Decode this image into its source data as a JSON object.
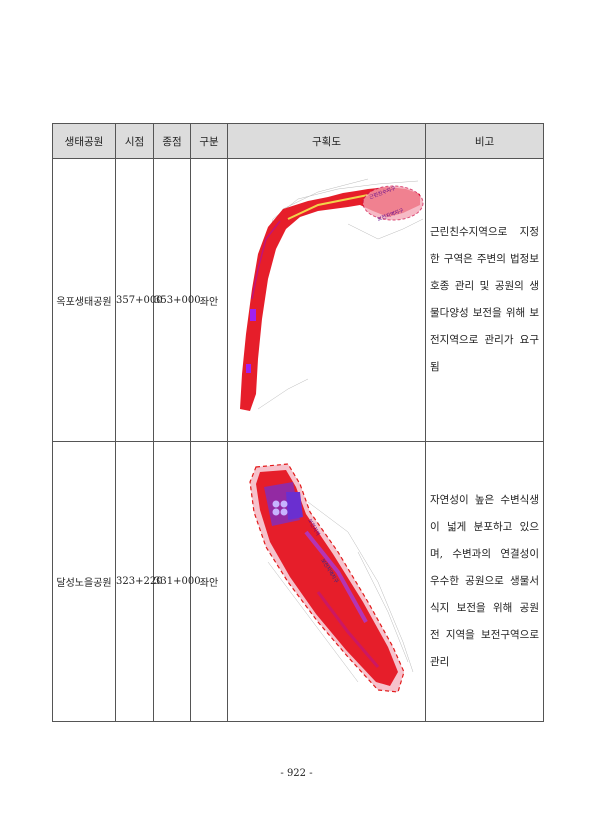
{
  "table": {
    "headers": {
      "park": "생태공원",
      "start": "시점",
      "end": "종점",
      "division": "구분",
      "plan": "구획도",
      "note": "비고"
    },
    "rows": [
      {
        "park": "옥포생태공원",
        "start": "357+000",
        "end": "353+000",
        "division": "좌안",
        "map_labels": [
          "근린친수지구",
          "보전지역지구"
        ],
        "note": "근린친수지역으로 지정한 구역은 주변의 법정보호종 관리 및 공원의 생물다양성 보전을 위해 보전지역으로 관리가 요구됨"
      },
      {
        "park": "달성노을공원",
        "start": "323+220",
        "end": "331+000",
        "division": "좌안",
        "map_labels": [
          "보전지역",
          "보전지역지구"
        ],
        "note": "자연성이 높은 수변식생이 넓게 분포하고 있으며, 수변과의 연결성이 우수한 공원으로 생물서식지 보전을 위해 공원 전 지역을 보전구역으로 관리"
      }
    ]
  },
  "footer": {
    "page_number": "- 922 -"
  }
}
